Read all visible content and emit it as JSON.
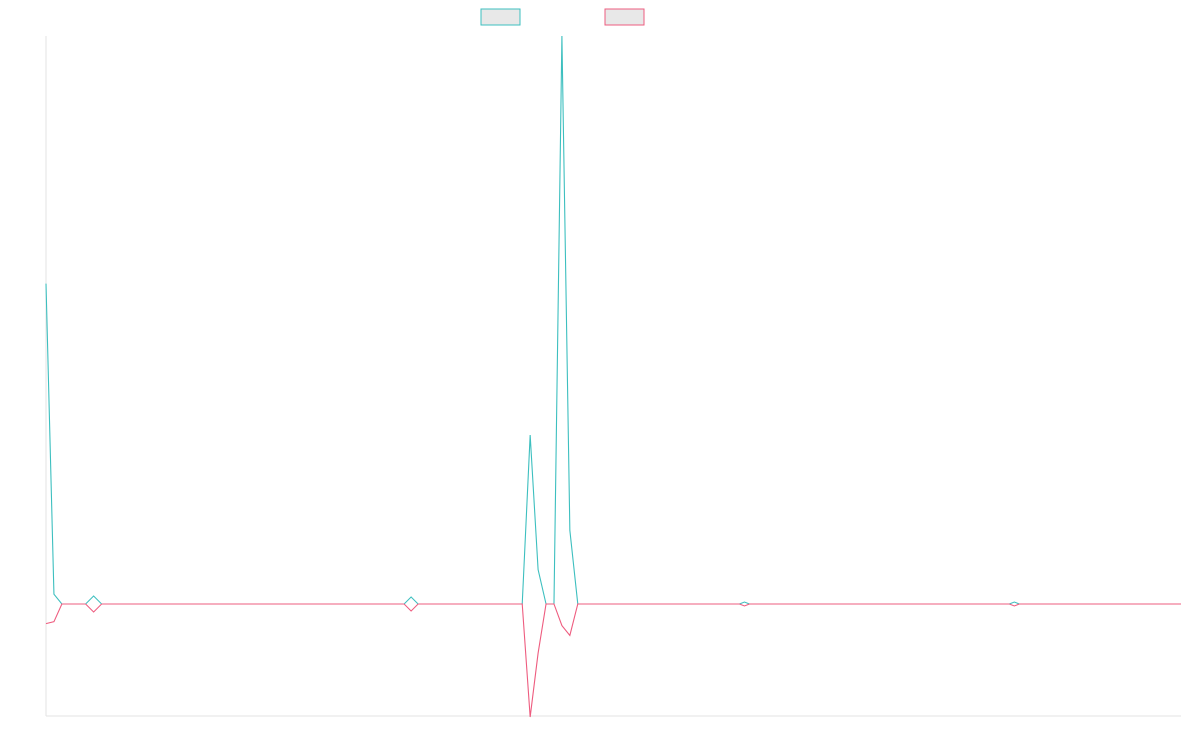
{
  "chart_data": {
    "type": "line",
    "title": "",
    "xlabel": "",
    "ylabel": "",
    "x": [
      0,
      1,
      2,
      3,
      4,
      5,
      6,
      7,
      8,
      9,
      10,
      11,
      12,
      13,
      14,
      15,
      16,
      17,
      18,
      19,
      20,
      21,
      22,
      23,
      24,
      25,
      26,
      27,
      28,
      29,
      30,
      31,
      32,
      33,
      34,
      35,
      36,
      37,
      38,
      39,
      40,
      41,
      42,
      43,
      44,
      45,
      46,
      47,
      48,
      49,
      50,
      51,
      52,
      53,
      54,
      55,
      56,
      57,
      58,
      59,
      60,
      61,
      62,
      63,
      64,
      65,
      66,
      67,
      68,
      69,
      70,
      71,
      72,
      73,
      74,
      75,
      76,
      77,
      78,
      79,
      80,
      81,
      82,
      83,
      84,
      85,
      86,
      87,
      88,
      89,
      90,
      91,
      92,
      93,
      94,
      95,
      96,
      97,
      98,
      99,
      100,
      101,
      102,
      103,
      104,
      105,
      106,
      107,
      108,
      109,
      110,
      111,
      112,
      113,
      114,
      115,
      116,
      117,
      118,
      119,
      120,
      121,
      122,
      123,
      124,
      125,
      126,
      127,
      128,
      129,
      130,
      131,
      132,
      133,
      134,
      135,
      136,
      137,
      138,
      139,
      140,
      141,
      142,
      143
    ],
    "ylim": [
      -115,
      578
    ],
    "grid": false,
    "legend_position": "top-center",
    "series": [
      {
        "color": "#3dbfbf",
        "fill": "#e8e8e8",
        "values": [
          326,
          10,
          0,
          0,
          0,
          0,
          0,
          0,
          0,
          0,
          0,
          0,
          0,
          0,
          0,
          0,
          0,
          0,
          0,
          0,
          0,
          0,
          0,
          0,
          0,
          0,
          0,
          0,
          0,
          0,
          0,
          0,
          0,
          0,
          0,
          0,
          0,
          0,
          0,
          0,
          0,
          0,
          0,
          0,
          0,
          0,
          0,
          0,
          0,
          0,
          0,
          0,
          0,
          0,
          0,
          0,
          0,
          0,
          0,
          0,
          0,
          172,
          35,
          0,
          0,
          578,
          75,
          0,
          0,
          0,
          0,
          0,
          0,
          0,
          0,
          0,
          0,
          0,
          0,
          0,
          0,
          0,
          0,
          0,
          0,
          0,
          0,
          0,
          0,
          0,
          0,
          0,
          0,
          0,
          0,
          0,
          0,
          0,
          0,
          0,
          0,
          0,
          0,
          0,
          0,
          0,
          0,
          0,
          0,
          0,
          0,
          0,
          0,
          0,
          0,
          0,
          0,
          0,
          0,
          0,
          0,
          0,
          0,
          0,
          0,
          0,
          0,
          0,
          0,
          0,
          0,
          0,
          0,
          0,
          0,
          0,
          0,
          0,
          0,
          0,
          0,
          0,
          0,
          0
        ],
        "markers": [
          {
            "index": 6,
            "value": 0
          },
          {
            "index": 46,
            "value": 0
          },
          {
            "index": 88,
            "value": 0
          },
          {
            "index": 122,
            "value": 0
          }
        ]
      },
      {
        "color": "#ee5c7f",
        "fill": "#e8e8e8",
        "values": [
          -20,
          -18,
          0,
          0,
          0,
          0,
          0,
          0,
          0,
          0,
          0,
          0,
          0,
          0,
          0,
          0,
          0,
          0,
          0,
          0,
          0,
          0,
          0,
          0,
          0,
          0,
          0,
          0,
          0,
          0,
          0,
          0,
          0,
          0,
          0,
          0,
          0,
          0,
          0,
          0,
          0,
          0,
          0,
          0,
          0,
          0,
          0,
          0,
          0,
          0,
          0,
          0,
          0,
          0,
          0,
          0,
          0,
          0,
          0,
          0,
          0,
          -115,
          -50,
          0,
          0,
          -22,
          -32,
          0,
          0,
          0,
          0,
          0,
          0,
          0,
          0,
          0,
          0,
          0,
          0,
          0,
          0,
          0,
          0,
          0,
          0,
          0,
          0,
          0,
          0,
          0,
          0,
          0,
          0,
          0,
          0,
          0,
          0,
          0,
          0,
          0,
          0,
          0,
          0,
          0,
          0,
          0,
          0,
          0,
          0,
          0,
          0,
          0,
          0,
          0,
          0,
          0,
          0,
          0,
          0,
          0,
          0,
          0,
          0,
          0,
          0,
          0,
          0,
          0,
          0,
          0,
          0,
          0,
          0,
          0,
          0,
          0,
          0,
          0,
          0,
          0,
          0,
          0,
          0,
          0
        ],
        "markers": [
          {
            "index": 6,
            "value": 0
          },
          {
            "index": 46,
            "value": 0
          },
          {
            "index": 88,
            "value": 0
          },
          {
            "index": 122,
            "value": 0
          }
        ]
      }
    ]
  }
}
